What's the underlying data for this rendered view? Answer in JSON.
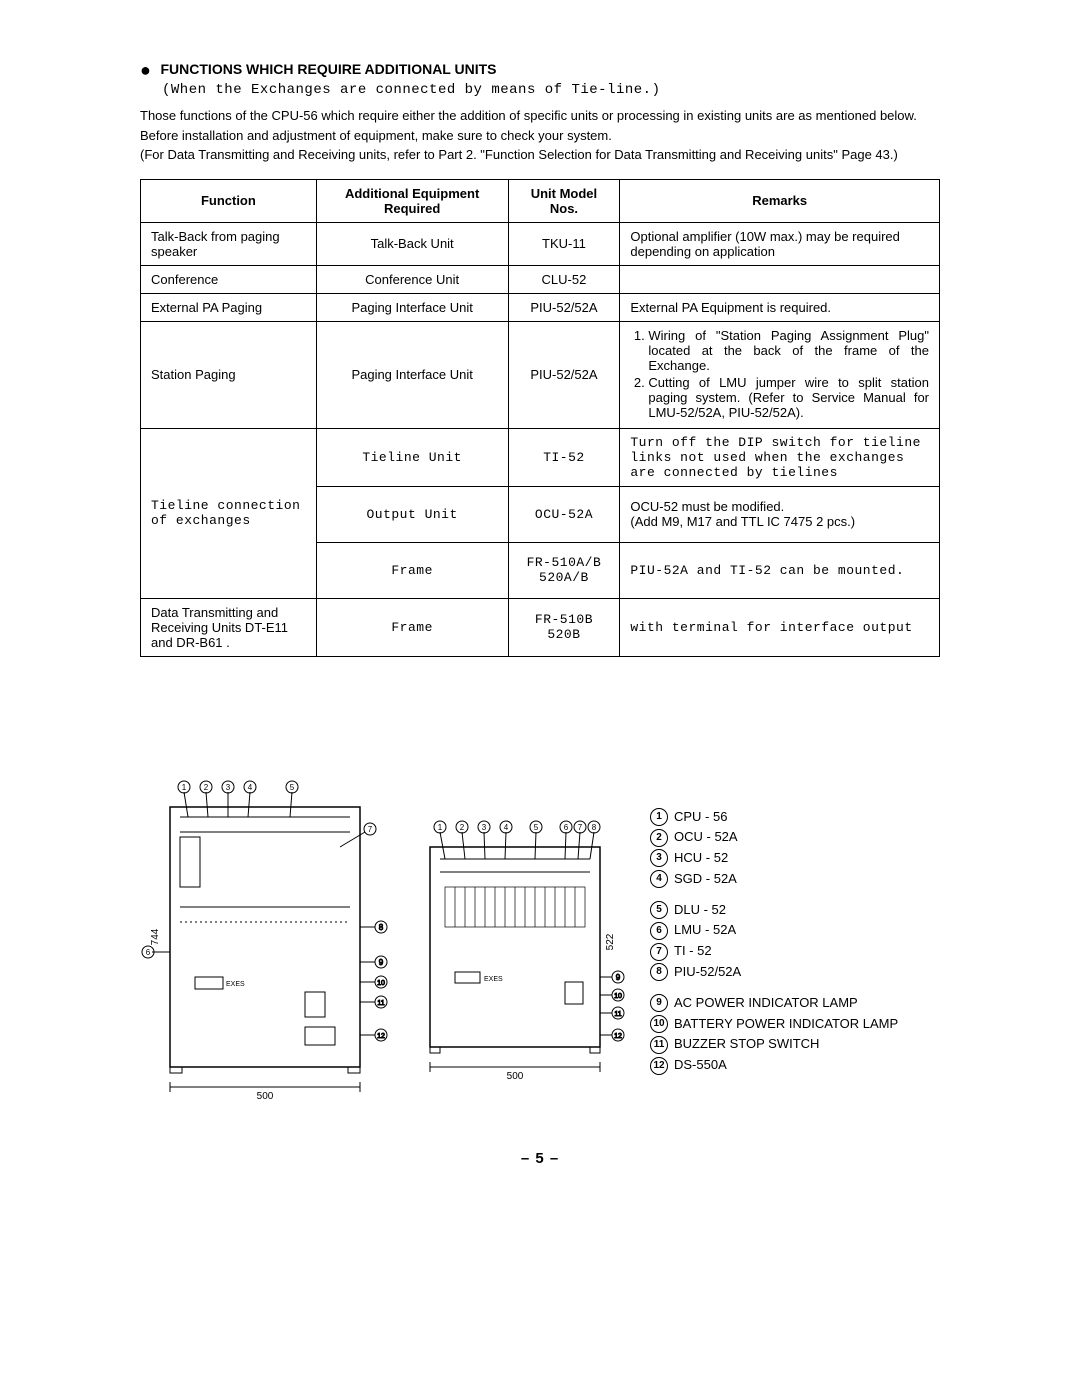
{
  "header": {
    "bullet": "●",
    "title": "FUNCTIONS WHICH REQUIRE ADDITIONAL UNITS",
    "subtitle": "(When the Exchanges are connected by means of Tie-line.)"
  },
  "intro": {
    "p1": "Those functions of the CPU-56 which require either the addition of specific units or processing in existing units are as mentioned below.  Before installation and adjustment of equipment, make sure to check your system.",
    "p2": "(For Data Transmitting and Receiving units, refer to Part 2. \"Function Selection for Data Transmitting and Receiving units\" Page 43.)"
  },
  "table": {
    "headers": [
      "Function",
      "Additional Equipment Required",
      "Unit Model Nos.",
      "Remarks"
    ],
    "rows": [
      {
        "function": "Talk-Back from paging speaker",
        "equip": "Talk-Back Unit",
        "model": "TKU-11",
        "remarks": "Optional amplifier (10W max.) may be required depending on application",
        "mono": false
      },
      {
        "function": "Conference",
        "equip": "Conference Unit",
        "model": "CLU-52",
        "remarks": "",
        "mono": false
      },
      {
        "function": "External PA Paging",
        "equip": "Paging Interface Unit",
        "model": "PIU-52/52A",
        "remarks": "External PA Equipment is required.",
        "mono": false
      },
      {
        "function": "Station Paging",
        "equip": "Paging Interface Unit",
        "model": "PIU-52/52A",
        "remarks_list": [
          "Wiring of \"Station Paging Assignment Plug\" located at the back of the frame of the Exchange.",
          "Cutting of LMU jumper wire to split station paging system. (Refer to Service Manual for LMU-52/52A, PIU-52/52A)."
        ],
        "mono": false
      }
    ],
    "tieline": {
      "function": "Tieline connection of exchanges",
      "sub": [
        {
          "equip": "Tieline Unit",
          "model": "TI-52",
          "remarks": "Turn off the DIP switch for tieline links not used when the exchanges are connected by tielines",
          "rmono": true
        },
        {
          "equip": "Output Unit",
          "model": "OCU-52A",
          "remarks": "OCU-52 must be modified.\n(Add M9, M17 and TTL IC 7475 2 pcs.)",
          "rmono": false
        },
        {
          "equip": "Frame",
          "model": "FR-510A/B\n520A/B",
          "remarks": "PIU-52A and TI-52 can be mounted.",
          "rmono": true
        }
      ]
    },
    "lastrow": {
      "function": "Data Transmitting and Receiving Units DT-E11 and DR-B61 .",
      "equip": "Frame",
      "model": "FR-510B\n520B",
      "remarks": "with terminal for interface output"
    }
  },
  "legend": [
    {
      "n": "1",
      "t": "CPU - 56"
    },
    {
      "n": "2",
      "t": "OCU - 52A"
    },
    {
      "n": "3",
      "t": "HCU - 52"
    },
    {
      "n": "4",
      "t": "SGD - 52A"
    },
    {
      "n": "5",
      "t": "DLU - 52"
    },
    {
      "n": "6",
      "t": "LMU - 52A"
    },
    {
      "n": "7",
      "t": "TI - 52"
    },
    {
      "n": "8",
      "t": "PIU-52/52A"
    },
    {
      "n": "9",
      "t": "AC POWER INDICATOR LAMP"
    },
    {
      "n": "10",
      "t": "BATTERY POWER INDICATOR LAMP"
    },
    {
      "n": "11",
      "t": "BUZZER STOP SWITCH"
    },
    {
      "n": "12",
      "t": "DS-550A"
    }
  ],
  "dims": {
    "left_w": "500",
    "left_h": "744",
    "right_w": "500",
    "right_h": "522"
  },
  "page_number": "– 5 –"
}
